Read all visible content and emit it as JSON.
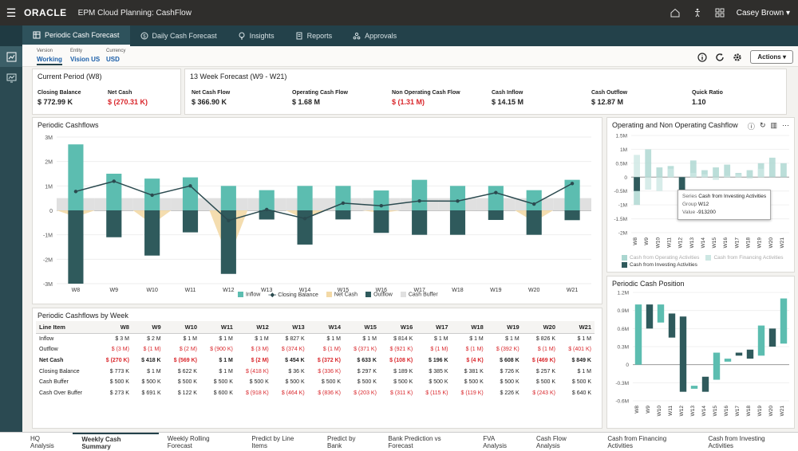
{
  "header": {
    "brand": "ORACLE",
    "app_title": "EPM Cloud Planning: CashFlow",
    "user": "Casey Brown"
  },
  "nav_tabs": [
    {
      "label": "Periodic Cash Forecast",
      "icon": "grid-icon"
    },
    {
      "label": "Daily Cash Forecast",
      "icon": "dollar-icon"
    },
    {
      "label": "Insights",
      "icon": "lightbulb-icon"
    },
    {
      "label": "Reports",
      "icon": "report-icon"
    },
    {
      "label": "Approvals",
      "icon": "approvals-icon"
    }
  ],
  "pov": [
    {
      "label": "Version",
      "value": "Working"
    },
    {
      "label": "Entity",
      "value": "Vision US"
    },
    {
      "label": "Currency",
      "value": "USD"
    }
  ],
  "actions_label": "Actions",
  "current_period": {
    "title": "Current Period (W8)",
    "kpis": [
      {
        "label": "Closing Balance",
        "value": "$ 772.99 K",
        "negative": false
      },
      {
        "label": "Net Cash",
        "value": "$ (270.31 K)",
        "negative": true
      }
    ]
  },
  "forecast13": {
    "title": "13 Week Forecast (W9 - W21)",
    "kpis": [
      {
        "label": "Net Cash Flow",
        "value": "$ 366.90 K",
        "negative": false
      },
      {
        "label": "Operating Cash Flow",
        "value": "$ 1.68 M",
        "negative": false
      },
      {
        "label": "Non Operating Cash Flow",
        "value": "$ (1.31 M)",
        "negative": true
      },
      {
        "label": "Cash Inflow",
        "value": "$ 14.15 M",
        "negative": false
      },
      {
        "label": "Cash Outflow",
        "value": "$ 12.87 M",
        "negative": false
      },
      {
        "label": "Quick Ratio",
        "value": "1.10",
        "negative": false
      }
    ]
  },
  "periodic_cashflows_title": "Periodic Cashflows",
  "operating_title": "Operating and Non Operating Cashflow",
  "position_title": "Periodic Cash Position",
  "table_title": "Periodic Cashflows by Week",
  "colors": {
    "inflow": "#5cbdb0",
    "outflow": "#2f5a5c",
    "net": "#f3d9a6",
    "buffer": "#e0e0e0",
    "balance": "#2b4a4f",
    "fin": "#cde7e3",
    "op": "#aad6d0"
  },
  "chart_data": [
    {
      "type": "bar",
      "title": "Periodic Cashflows",
      "categories": [
        "W8",
        "W9",
        "W10",
        "W11",
        "W12",
        "W13",
        "W14",
        "W15",
        "W16",
        "W17",
        "W18",
        "W19",
        "W20",
        "W21"
      ],
      "ylim": [
        -3000000,
        3000000
      ],
      "yticks": [
        "3M",
        "2M",
        "1M",
        "0",
        "-1M",
        "-2M",
        "-3M"
      ],
      "legend": [
        "Inflow",
        "Closing Balance",
        "Net Cash",
        "Outflow",
        "Cash Buffer"
      ],
      "series": [
        {
          "name": "Inflow",
          "values": [
            2700000,
            1500000,
            1300000,
            1350000,
            1000000,
            827000,
            1000000,
            1000000,
            814000,
            1250000,
            1000000,
            1000000,
            826000,
            1250000
          ]
        },
        {
          "name": "Outflow",
          "values": [
            -3000000,
            -1100000,
            -1850000,
            -900000,
            -2600000,
            -374000,
            -1400000,
            -371000,
            -921000,
            -1000000,
            -1000000,
            -392000,
            -1000000,
            -401000
          ]
        },
        {
          "name": "Net Cash",
          "values": [
            -270000,
            418000,
            -569000,
            1000000,
            -2000000,
            454000,
            -372000,
            633000,
            -108000,
            196000,
            -4000,
            608000,
            -469000,
            849000
          ]
        },
        {
          "name": "Closing Balance",
          "values": [
            773000,
            1191000,
            622000,
            1000000,
            -418000,
            36000,
            -336000,
            297000,
            189000,
            385000,
            381000,
            726000,
            257000,
            1100000
          ]
        },
        {
          "name": "Cash Buffer",
          "values": [
            500000,
            500000,
            500000,
            500000,
            500000,
            500000,
            500000,
            500000,
            500000,
            500000,
            500000,
            500000,
            500000,
            500000
          ]
        }
      ]
    },
    {
      "type": "bar",
      "title": "Operating and Non Operating Cashflow",
      "categories": [
        "W8",
        "W9",
        "W10",
        "W11",
        "W12",
        "W13",
        "W14",
        "W15",
        "W16",
        "W17",
        "W18",
        "W19",
        "W20",
        "W21"
      ],
      "ylim": [
        -2000000,
        1500000
      ],
      "yticks": [
        "1.5M",
        "1M",
        "0.5M",
        "0",
        "-0.5M",
        "-1M",
        "-1.5M",
        "-2M"
      ],
      "legend": [
        "Cash from Operating Activities",
        "Cash from Financing Activities",
        "Cash from Investing Activities"
      ],
      "series": [
        {
          "name": "Cash from Operating Activities",
          "values": [
            -1000000,
            1000000,
            350000,
            400000,
            -400000,
            600000,
            250000,
            350000,
            450000,
            150000,
            250000,
            500000,
            700000,
            500000
          ]
        },
        {
          "name": "Cash from Financing Activities",
          "values": [
            800000,
            -450000,
            -500000,
            300000,
            -550000,
            150000,
            100000,
            -100000,
            50000,
            100000,
            -50000,
            300000,
            0,
            0
          ]
        },
        {
          "name": "Cash from Investing Activities",
          "values": [
            -500000,
            0,
            0,
            0,
            -913200,
            0,
            0,
            0,
            0,
            0,
            0,
            0,
            0,
            0
          ]
        }
      ],
      "tooltip": {
        "series_label": "Series",
        "series": "Cash from Investing Activities",
        "group_label": "Group",
        "group": "W12",
        "value_label": "Value",
        "value": "-913200"
      }
    },
    {
      "type": "bar",
      "title": "Periodic Cash Position",
      "categories": [
        "W8",
        "W9",
        "W10",
        "W11",
        "W12",
        "W13",
        "W14",
        "W15",
        "W16",
        "W17",
        "W18",
        "W19",
        "W20",
        "W21"
      ],
      "ylim": [
        -600000,
        1200000
      ],
      "yticks": [
        "1.2M",
        "0.9M",
        "0.6M",
        "0.3M",
        "0",
        "-0.3M",
        "-0.6M"
      ],
      "series": [
        {
          "name": "Periodic Cash Position",
          "starts": [
            0,
            1000000,
            700000,
            850000,
            800000,
            -400000,
            -200000,
            200000,
            50000,
            150000,
            250000,
            650000,
            300000,
            350000
          ],
          "ends": [
            1000000,
            600000,
            1000000,
            450000,
            -450000,
            -350000,
            -450000,
            -250000,
            100000,
            200000,
            100000,
            150000,
            600000,
            1100000
          ],
          "color": [
            "inflow",
            "outflow",
            "inflow",
            "outflow",
            "outflow",
            "inflow",
            "outflow",
            "inflow",
            "inflow",
            "outflow",
            "outflow",
            "inflow",
            "outflow",
            "inflow"
          ]
        }
      ]
    }
  ],
  "table": {
    "headers": [
      "Line Item",
      "W8",
      "W9",
      "W10",
      "W11",
      "W12",
      "W13",
      "W14",
      "W15",
      "W16",
      "W17",
      "W18",
      "W19",
      "W20",
      "W21"
    ],
    "rows": [
      {
        "label": "Inflow",
        "bold": false,
        "cells": [
          "$ 3 M",
          "$ 2 M",
          "$ 1 M",
          "$ 1 M",
          "$ 1 M",
          "$ 827 K",
          "$ 1 M",
          "$ 1 M",
          "$ 814 K",
          "$ 1 M",
          "$ 1 M",
          "$ 1 M",
          "$ 826 K",
          "$ 1 M"
        ]
      },
      {
        "label": "Outflow",
        "bold": false,
        "cells": [
          "$ (3 M)",
          "$ (1 M)",
          "$ (2 M)",
          "$ (900 K)",
          "$ (3 M)",
          "$ (374 K)",
          "$ (1 M)",
          "$ (371 K)",
          "$ (921 K)",
          "$ (1 M)",
          "$ (1 M)",
          "$ (392 K)",
          "$ (1 M)",
          "$ (401 K)"
        ]
      },
      {
        "label": "Net Cash",
        "bold": true,
        "cells": [
          "$ (270 K)",
          "$ 418 K",
          "$ (569 K)",
          "$ 1 M",
          "$ (2 M)",
          "$ 454 K",
          "$ (372 K)",
          "$ 633 K",
          "$ (108 K)",
          "$ 196 K",
          "$ (4 K)",
          "$ 608 K",
          "$ (469 K)",
          "$ 849 K"
        ]
      },
      {
        "label": "Closing Balance",
        "bold": false,
        "cells": [
          "$ 773 K",
          "$ 1 M",
          "$ 622 K",
          "$ 1 M",
          "$ (418 K)",
          "$ 36 K",
          "$ (336 K)",
          "$ 297 K",
          "$ 189 K",
          "$ 385 K",
          "$ 381 K",
          "$ 726 K",
          "$ 257 K",
          "$ 1 M"
        ]
      },
      {
        "label": "Cash Buffer",
        "bold": false,
        "cells": [
          "$ 500 K",
          "$ 500 K",
          "$ 500 K",
          "$ 500 K",
          "$ 500 K",
          "$ 500 K",
          "$ 500 K",
          "$ 500 K",
          "$ 500 K",
          "$ 500 K",
          "$ 500 K",
          "$ 500 K",
          "$ 500 K",
          "$ 500 K"
        ]
      },
      {
        "label": "Cash Over Buffer",
        "bold": false,
        "cells": [
          "$ 273 K",
          "$ 691 K",
          "$ 122 K",
          "$ 600 K",
          "$ (918 K)",
          "$ (464 K)",
          "$ (836 K)",
          "$ (203 K)",
          "$ (311 K)",
          "$ (115 K)",
          "$ (119 K)",
          "$ 226 K",
          "$ (243 K)",
          "$ 640 K"
        ]
      }
    ]
  },
  "bottom_tabs": [
    "HQ Analysis",
    "Weekly Cash Summary",
    "Weekly Rolling Forecast",
    "Predict by Line Items",
    "Predict by Bank",
    "Bank Prediction vs Forecast",
    "FVA Analysis",
    "Cash Flow Analysis",
    "Cash from Financing Activities",
    "Cash from Investing Activities"
  ],
  "bottom_active": 1
}
